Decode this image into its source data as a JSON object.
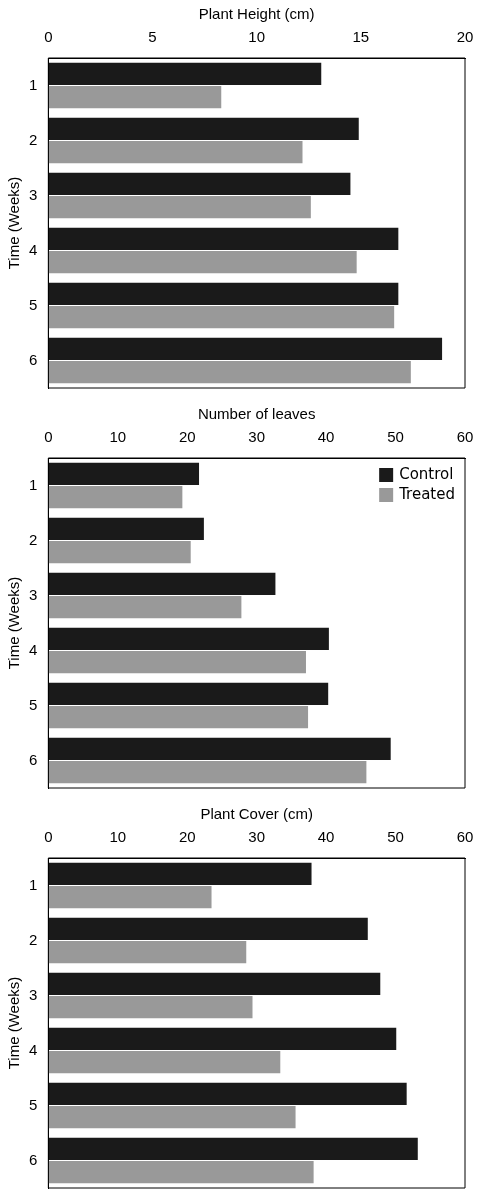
{
  "chart_data": [
    {
      "type": "bar",
      "orientation": "horizontal",
      "xlabel": "Plant Height (cm)",
      "ylabel": "Time (Weeks)",
      "categories": [
        "1",
        "2",
        "3",
        "4",
        "5",
        "6"
      ],
      "xlim": [
        0,
        20
      ],
      "xticks": [
        0,
        5,
        10,
        15,
        20
      ],
      "grid": false,
      "legend": false,
      "series": [
        {
          "color": "#1a1a1a",
          "values": [
            13.1,
            14.9,
            14.5,
            16.8,
            16.8,
            18.9
          ]
        },
        {
          "color": "#999999",
          "values": [
            8.3,
            12.2,
            12.6,
            14.8,
            16.6,
            17.4
          ]
        }
      ]
    },
    {
      "type": "bar",
      "orientation": "horizontal",
      "xlabel": "Number of leaves",
      "ylabel": "Time (Weeks)",
      "categories": [
        "1",
        "2",
        "3",
        "4",
        "5",
        "6"
      ],
      "xlim": [
        0,
        60
      ],
      "xticks": [
        0,
        10,
        20,
        30,
        40,
        50,
        60
      ],
      "grid": false,
      "legend": "top right",
      "series": [
        {
          "name": "Control",
          "color": "#1a1a1a",
          "values": [
            21.7,
            22.4,
            32.7,
            40.4,
            40.3,
            49.3
          ]
        },
        {
          "name": "Treated",
          "color": "#999999",
          "values": [
            19.3,
            20.5,
            27.8,
            37.1,
            37.4,
            45.8
          ]
        }
      ]
    },
    {
      "type": "bar",
      "orientation": "horizontal",
      "xlabel": "Plant Cover (cm)",
      "ylabel": "Time (Weeks)",
      "categories": [
        "1",
        "2",
        "3",
        "4",
        "5",
        "6"
      ],
      "xlim": [
        0,
        60
      ],
      "xticks": [
        0,
        10,
        20,
        30,
        40,
        50,
        60
      ],
      "grid": false,
      "legend": false,
      "series": [
        {
          "color": "#1a1a1a",
          "values": [
            37.9,
            46.0,
            47.8,
            50.1,
            51.6,
            53.2
          ]
        },
        {
          "color": "#999999",
          "values": [
            23.5,
            28.5,
            29.4,
            33.4,
            35.6,
            38.2
          ]
        }
      ]
    }
  ]
}
